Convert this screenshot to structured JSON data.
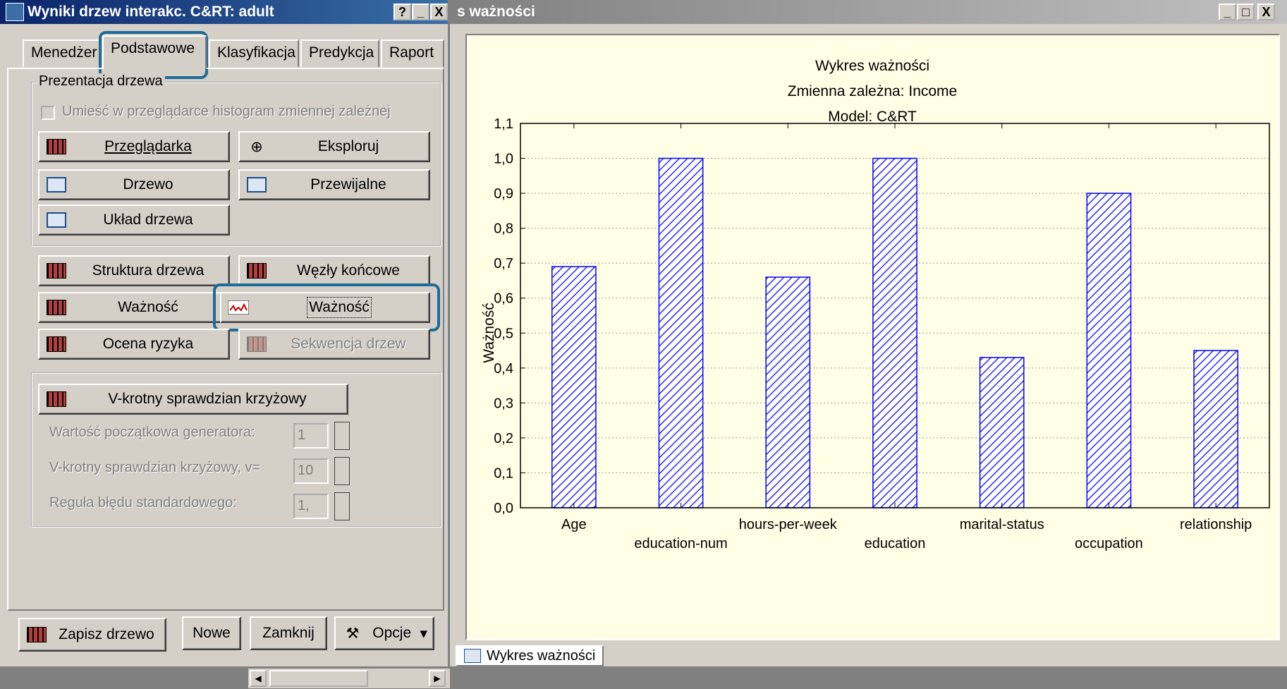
{
  "dialog": {
    "title": "Wyniki drzew interakc. C&RT: adult",
    "title_buttons": [
      "?",
      "_",
      "X"
    ],
    "tabs": [
      {
        "label": "Menedżer"
      },
      {
        "label": "Podstawowe"
      },
      {
        "label": "Klasyfikacja"
      },
      {
        "label": "Predykcja"
      },
      {
        "label": "Raport"
      }
    ],
    "group_tree": {
      "label": "Prezentacja drzewa",
      "checkbox_label": "Umieść w przeglądarce histogram zmiennej zależnej",
      "btn_browser": "Przeglądarka",
      "btn_explore": "Eksploruj",
      "btn_tree": "Drzewo",
      "btn_scrollable": "Przewijalne",
      "btn_layout": "Układ drzewa"
    },
    "btn_structure": "Struktura drzewa",
    "btn_terminal": "Węzły końcowe",
    "btn_importance_table": "Ważność",
    "btn_importance_chart": "Ważność",
    "btn_risk": "Ocena ryzyka",
    "btn_sequence": "Sekwencja drzew",
    "group_cv": {
      "btn_cv": "V-krotny sprawdzian krzyżowy",
      "seed_label": "Wartość początkowa generatora:",
      "seed_value": "1",
      "v_label": "V-krotny sprawdzian krzyżowy, v=",
      "v_value": "10",
      "se_label": "Reguła błędu standardowego:",
      "se_value": "1,"
    },
    "footer": {
      "save_tree": "Zapisz drzewo",
      "new": "Nowe",
      "close": "Zamknij",
      "options": "Opcje"
    }
  },
  "chart_window": {
    "title": "s ważności",
    "title_buttons": [
      "_",
      "□",
      "X"
    ],
    "bottom_tab": "Wykres ważności"
  },
  "chart_data": {
    "type": "bar",
    "title": "Wykres ważności",
    "subtitle_1": "Zmienna zależna: Income",
    "subtitle_2": "Model: C&RT",
    "ylabel": "Ważność",
    "xlabel": "",
    "ylim": [
      0.0,
      1.1
    ],
    "yticks": [
      "0,0",
      "0,1",
      "0,2",
      "0,3",
      "0,4",
      "0,5",
      "0,6",
      "0,7",
      "0,8",
      "0,9",
      "1,0",
      "1,1"
    ],
    "categories": [
      "Age",
      "education-num",
      "hours-per-week",
      "education",
      "marital-status",
      "occupation",
      "relationship"
    ],
    "values": [
      0.69,
      1.0,
      0.66,
      1.0,
      0.43,
      0.9,
      0.45
    ],
    "bar_fill": "hatched blue",
    "bar_color": "#0000ff",
    "background": "#ffffe6",
    "grid": true
  }
}
